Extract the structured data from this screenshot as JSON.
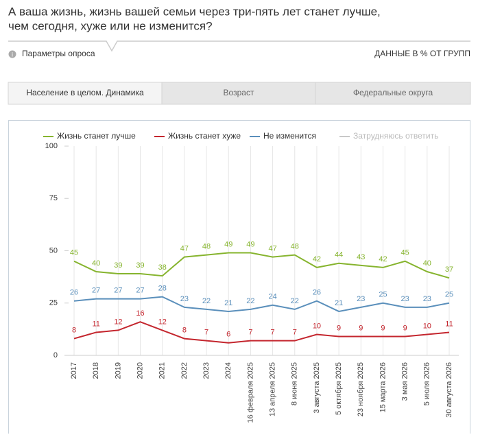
{
  "header": {
    "title_lines": [
      "А ваша жизнь, жизнь вашей семьи через три-пять лет станет лучше,",
      "чем сегодня, хуже или не изменится?"
    ],
    "params": "Параметры опроса",
    "note": "ДАННЫЕ В % ОТ ГРУПП"
  },
  "tabs": [
    "Население в целом. Динамика",
    "Возраст",
    "Федеральные округа"
  ],
  "chart_data": {
    "type": "line",
    "categories": [
      "2017",
      "2018",
      "2019",
      "2020",
      "2021",
      "2022",
      "2023",
      "2024",
      "16 февраля 2025",
      "13 апреля 2025",
      "8 июня 2025",
      "3 августа 2025",
      "5 октября 2025",
      "23 ноября 2025",
      "15 марта 2026",
      "3 мая 2026",
      "5 июля 2026",
      "30 августа 2026"
    ],
    "series": [
      {
        "name": "Жизнь станет лучше",
        "color": "#86b42e",
        "values": [
          45,
          40,
          39,
          39,
          38,
          47,
          48,
          49,
          49,
          47,
          48,
          42,
          44,
          43,
          42,
          45,
          40,
          37
        ]
      },
      {
        "name": "Жизнь станет хуже",
        "color": "#c4262e",
        "values": [
          8,
          11,
          12,
          16,
          12,
          8,
          7,
          6,
          7,
          7,
          7,
          10,
          9,
          9,
          9,
          9,
          10,
          11
        ]
      },
      {
        "name": "Не изменится",
        "color": "#5a8fbb",
        "values": [
          26,
          27,
          27,
          27,
          28,
          23,
          22,
          21,
          22,
          24,
          22,
          26,
          21,
          23,
          25,
          23,
          23,
          25
        ]
      },
      {
        "name": "Затрудняюсь ответить",
        "color": "#c8c8c8",
        "values": [
          null,
          null,
          null,
          null,
          null,
          null,
          null,
          null,
          null,
          null,
          null,
          null,
          null,
          null,
          null,
          null,
          null,
          null
        ]
      }
    ],
    "ylim": [
      0,
      100
    ],
    "yticks": [
      0,
      25,
      50,
      75,
      100
    ]
  }
}
